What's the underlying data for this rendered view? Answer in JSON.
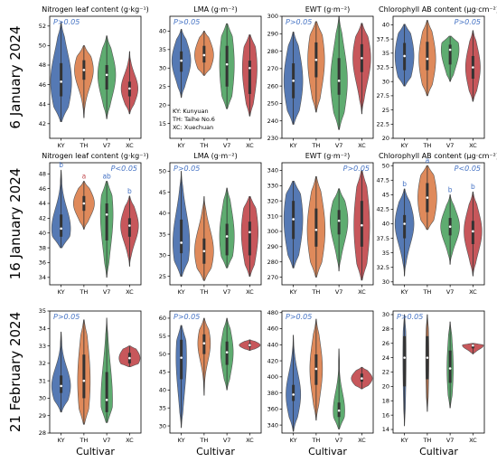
{
  "figure": {
    "row_labels": [
      "6 January 2024",
      "16 January 2024",
      "21 February 2024"
    ],
    "x_label": "Cultivar",
    "legend_lines": [
      "KY: Kunyuan",
      "TH: Taihe No.6",
      "XC: Xuechuan"
    ],
    "colors": {
      "KY": "#4c72b0",
      "TH": "#dd8452",
      "V7": "#55a868",
      "XC": "#c44e52"
    }
  },
  "chart_data": [
    {
      "type": "violin",
      "row": 0,
      "col": 0,
      "title": "Nitrogen leaf content (g·kg⁻¹)",
      "categories": [
        "KY",
        "TH",
        "V7",
        "XC"
      ],
      "ylim": [
        40.5,
        53
      ],
      "yticks": [
        42,
        44,
        46,
        48,
        50,
        52
      ],
      "annotation": "P>0.05",
      "series": [
        {
          "cat": "KY",
          "min": 42.2,
          "max": 52.4,
          "q1": 44.8,
          "median": 46.3,
          "q3": 48.2,
          "width": 1.0
        },
        {
          "cat": "TH",
          "min": 42.6,
          "max": 50.0,
          "q1": 46.5,
          "median": 47.5,
          "q3": 48.5,
          "width": 0.9
        },
        {
          "cat": "V7",
          "min": 42.5,
          "max": 51.0,
          "q1": 45.5,
          "median": 47.0,
          "q3": 48.0,
          "width": 0.85
        },
        {
          "cat": "XC",
          "min": 43.0,
          "max": 49.4,
          "q1": 44.8,
          "median": 45.6,
          "q3": 46.3,
          "width": 0.8
        }
      ]
    },
    {
      "type": "violin",
      "row": 0,
      "col": 1,
      "title": "LMA (g·m⁻²)",
      "categories": [
        "KY",
        "TH",
        "V7",
        "XC"
      ],
      "ylim": [
        11,
        44
      ],
      "yticks": [
        15,
        20,
        25,
        30,
        35,
        40
      ],
      "annotation": "P>0.05",
      "series": [
        {
          "cat": "KY",
          "min": 22.0,
          "max": 40.5,
          "q1": 29.0,
          "median": 32.0,
          "q3": 34.5,
          "width": 0.9
        },
        {
          "cat": "TH",
          "min": 28.0,
          "max": 40.0,
          "q1": 31.5,
          "median": 33.5,
          "q3": 36.0,
          "width": 0.9
        },
        {
          "cat": "V7",
          "min": 19.0,
          "max": 42.0,
          "q1": 25.0,
          "median": 31.0,
          "q3": 36.0,
          "width": 0.7
        },
        {
          "cat": "XC",
          "min": 17.0,
          "max": 39.0,
          "q1": 23.0,
          "median": 30.0,
          "q3": 32.0,
          "width": 0.7
        }
      ]
    },
    {
      "type": "violin",
      "row": 0,
      "col": 2,
      "title": "EWT (g·m⁻²)",
      "categories": [
        "KY",
        "TH",
        "V7",
        "XC"
      ],
      "ylim": [
        230,
        300
      ],
      "yticks": [
        230,
        240,
        250,
        260,
        270,
        280,
        290,
        300
      ],
      "annotation": "P>0.05",
      "series": [
        {
          "cat": "KY",
          "min": 238,
          "max": 291,
          "q1": 253,
          "median": 263,
          "q3": 273,
          "width": 0.9
        },
        {
          "cat": "TH",
          "min": 245,
          "max": 297,
          "q1": 265,
          "median": 275,
          "q3": 285,
          "width": 0.8
        },
        {
          "cat": "V7",
          "min": 235,
          "max": 300,
          "q1": 255,
          "median": 263,
          "q3": 276,
          "width": 0.8
        },
        {
          "cat": "XC",
          "min": 244,
          "max": 296,
          "q1": 268,
          "median": 276,
          "q3": 284,
          "width": 0.85
        }
      ]
    },
    {
      "type": "violin",
      "row": 0,
      "col": 3,
      "title": "Chlorophyll AB content (μg·cm⁻²)",
      "categories": [
        "KY",
        "TH",
        "V7",
        "XC"
      ],
      "ylim": [
        20,
        41.5
      ],
      "yticks": [
        20,
        22.5,
        25,
        27.5,
        30,
        32.5,
        35,
        37.5,
        40
      ],
      "annotation": "P>0.05",
      "series": [
        {
          "cat": "KY",
          "min": 29.2,
          "max": 40.1,
          "q1": 32.0,
          "median": 34.5,
          "q3": 36.8,
          "width": 0.9
        },
        {
          "cat": "TH",
          "min": 27.5,
          "max": 40.8,
          "q1": 32.0,
          "median": 34.0,
          "q3": 37.0,
          "width": 0.8
        },
        {
          "cat": "V7",
          "min": 30.0,
          "max": 38.0,
          "q1": 33.0,
          "median": 35.6,
          "q3": 36.5,
          "width": 0.85
        },
        {
          "cat": "XC",
          "min": 26.5,
          "max": 39.0,
          "q1": 30.5,
          "median": 32.5,
          "q3": 34.5,
          "width": 0.7
        }
      ]
    },
    {
      "type": "violin",
      "row": 1,
      "col": 0,
      "title": "Nitrogen leaf content (g·kg⁻¹)",
      "categories": [
        "KY",
        "TH",
        "V7",
        "XC"
      ],
      "ylim": [
        33,
        49.5
      ],
      "yticks": [
        34,
        36,
        38,
        40,
        42,
        44,
        46,
        48
      ],
      "annotation": "P<0.05",
      "letters": [
        "b",
        "a",
        "ab",
        "b"
      ],
      "series": [
        {
          "cat": "KY",
          "min": 38.0,
          "max": 48.5,
          "q1": 39.5,
          "median": 40.6,
          "q3": 42.5,
          "width": 0.9
        },
        {
          "cat": "TH",
          "min": 40.5,
          "max": 47.0,
          "q1": 43.0,
          "median": 44.0,
          "q3": 45.0,
          "width": 1.0
        },
        {
          "cat": "V7",
          "min": 34.0,
          "max": 47.0,
          "q1": 39.0,
          "median": 42.5,
          "q3": 44.0,
          "width": 0.6
        },
        {
          "cat": "XC",
          "min": 35.5,
          "max": 45.0,
          "q1": 39.5,
          "median": 41.0,
          "q3": 42.0,
          "width": 0.85
        }
      ]
    },
    {
      "type": "violin",
      "row": 1,
      "col": 1,
      "title": "LMA (g·m⁻²)",
      "categories": [
        "KY",
        "TH",
        "V7",
        "XC"
      ],
      "ylim": [
        23,
        52
      ],
      "yticks": [
        25,
        30,
        35,
        40,
        45,
        50
      ],
      "annotation": "P>0.05",
      "series": [
        {
          "cat": "KY",
          "min": 25.0,
          "max": 50.0,
          "q1": 30.5,
          "median": 33.0,
          "q3": 38.5,
          "width": 0.8
        },
        {
          "cat": "TH",
          "min": 24.0,
          "max": 44.0,
          "q1": 28.0,
          "median": 31.0,
          "q3": 34.0,
          "width": 0.9
        },
        {
          "cat": "V7",
          "min": 27.0,
          "max": 46.0,
          "q1": 30.0,
          "median": 34.5,
          "q3": 37.5,
          "width": 0.7
        },
        {
          "cat": "XC",
          "min": 25.0,
          "max": 44.0,
          "q1": 30.0,
          "median": 35.5,
          "q3": 38.0,
          "width": 0.8
        }
      ]
    },
    {
      "type": "violin",
      "row": 1,
      "col": 2,
      "title": "EWT (g·m⁻²)",
      "categories": [
        "KY",
        "TH",
        "V7",
        "XC"
      ],
      "ylim": [
        265,
        345
      ],
      "yticks": [
        270,
        280,
        290,
        300,
        310,
        320,
        330,
        340
      ],
      "annotation": "P>0.05",
      "series": [
        {
          "cat": "KY",
          "min": 276,
          "max": 333,
          "q1": 295,
          "median": 308,
          "q3": 320,
          "width": 0.9
        },
        {
          "cat": "TH",
          "min": 270,
          "max": 336,
          "q1": 290,
          "median": 301,
          "q3": 315,
          "width": 0.85
        },
        {
          "cat": "V7",
          "min": 274,
          "max": 328,
          "q1": 298,
          "median": 307,
          "q3": 314,
          "width": 0.85
        },
        {
          "cat": "XC",
          "min": 268,
          "max": 340,
          "q1": 290,
          "median": 304,
          "q3": 320,
          "width": 0.75
        }
      ]
    },
    {
      "type": "violin",
      "row": 1,
      "col": 3,
      "title": "Chlorophyll AB content (μg·cm⁻²)",
      "categories": [
        "KY",
        "TH",
        "V7",
        "XC"
      ],
      "ylim": [
        29.5,
        50.5
      ],
      "yticks": [
        30,
        32.5,
        35,
        37.5,
        40,
        42.5,
        45,
        47.5,
        50
      ],
      "annotation": "P<0.05",
      "letters": [
        "b",
        "a",
        "b",
        "b"
      ],
      "series": [
        {
          "cat": "KY",
          "min": 31.0,
          "max": 46.0,
          "q1": 37.5,
          "median": 40.0,
          "q3": 41.5,
          "width": 0.9
        },
        {
          "cat": "TH",
          "min": 39.0,
          "max": 50.0,
          "q1": 42.0,
          "median": 44.5,
          "q3": 47.0,
          "width": 0.9
        },
        {
          "cat": "V7",
          "min": 33.0,
          "max": 45.0,
          "q1": 38.0,
          "median": 39.5,
          "q3": 41.0,
          "width": 0.9
        },
        {
          "cat": "XC",
          "min": 31.0,
          "max": 45.5,
          "q1": 36.5,
          "median": 38.7,
          "q3": 40.5,
          "width": 0.85
        }
      ]
    },
    {
      "type": "violin",
      "row": 2,
      "col": 0,
      "title": "",
      "categories": [
        "KY",
        "TH",
        "V7",
        "XC"
      ],
      "ylim": [
        28,
        35
      ],
      "yticks": [
        28,
        29,
        30,
        31,
        32,
        33,
        34,
        35
      ],
      "annotation": "P>0.05",
      "series": [
        {
          "cat": "KY",
          "min": 29.2,
          "max": 33.8,
          "q1": 30.3,
          "median": 30.7,
          "q3": 31.3,
          "width": 0.9
        },
        {
          "cat": "TH",
          "min": 28.5,
          "max": 34.5,
          "q1": 30.0,
          "median": 31.0,
          "q3": 32.5,
          "width": 0.6
        },
        {
          "cat": "V7",
          "min": 28.6,
          "max": 34.6,
          "q1": 29.2,
          "median": 29.9,
          "q3": 31.5,
          "width": 0.55
        },
        {
          "cat": "XC",
          "min": 31.8,
          "max": 33.0,
          "q1": 32.0,
          "median": 32.3,
          "q3": 32.6,
          "width": 1.0
        }
      ]
    },
    {
      "type": "violin",
      "row": 2,
      "col": 1,
      "title": "",
      "categories": [
        "KY",
        "TH",
        "V7",
        "XC"
      ],
      "ylim": [
        28,
        62
      ],
      "yticks": [
        30,
        35,
        40,
        45,
        50,
        55,
        60
      ],
      "annotation": "P>0.05",
      "series": [
        {
          "cat": "KY",
          "min": 29.5,
          "max": 58.0,
          "q1": 43.0,
          "median": 49.0,
          "q3": 54.0,
          "width": 0.5
        },
        {
          "cat": "TH",
          "min": 38.5,
          "max": 60.0,
          "q1": 50.0,
          "median": 53.0,
          "q3": 55.5,
          "width": 0.6
        },
        {
          "cat": "V7",
          "min": 40.0,
          "max": 60.0,
          "q1": 47.0,
          "median": 50.5,
          "q3": 53.5,
          "width": 0.6
        },
        {
          "cat": "XC",
          "min": 51.0,
          "max": 54.0,
          "q1": 52.0,
          "median": 52.5,
          "q3": 53.0,
          "width": 1.0
        }
      ]
    },
    {
      "type": "violin",
      "row": 2,
      "col": 2,
      "title": "",
      "categories": [
        "KY",
        "TH",
        "V7",
        "XC"
      ],
      "ylim": [
        330,
        482
      ],
      "yticks": [
        340,
        360,
        380,
        400,
        420,
        440,
        460,
        480
      ],
      "annotation": "P>0.05",
      "series": [
        {
          "cat": "KY",
          "min": 332,
          "max": 452,
          "q1": 370,
          "median": 378,
          "q3": 390,
          "width": 0.7
        },
        {
          "cat": "TH",
          "min": 346,
          "max": 472,
          "q1": 390,
          "median": 410,
          "q3": 428,
          "width": 0.6
        },
        {
          "cat": "V7",
          "min": 335,
          "max": 435,
          "q1": 350,
          "median": 358,
          "q3": 368,
          "width": 0.55
        },
        {
          "cat": "XC",
          "min": 385,
          "max": 412,
          "q1": 394,
          "median": 398,
          "q3": 404,
          "width": 1.0
        }
      ]
    },
    {
      "type": "violin",
      "row": 2,
      "col": 3,
      "title": "",
      "categories": [
        "KY",
        "TH",
        "V7",
        "XC"
      ],
      "ylim": [
        13.5,
        30.5
      ],
      "yticks": [
        14,
        16,
        18,
        20,
        22,
        24,
        26,
        28,
        30
      ],
      "annotation": "P>0.05",
      "series": [
        {
          "cat": "KY",
          "min": 14.5,
          "max": 30.0,
          "q1": 20.0,
          "median": 24.0,
          "q3": 27.0,
          "width": 0.15
        },
        {
          "cat": "TH",
          "min": 16.5,
          "max": 30.0,
          "q1": 21.0,
          "median": 24.0,
          "q3": 27.0,
          "width": 0.15
        },
        {
          "cat": "V7",
          "min": 17.0,
          "max": 29.0,
          "q1": 20.5,
          "median": 22.5,
          "q3": 25.0,
          "width": 0.3
        },
        {
          "cat": "XC",
          "min": 24.5,
          "max": 26.0,
          "q1": 25.3,
          "median": 25.7,
          "q3": 25.9,
          "width": 1.0
        }
      ]
    }
  ]
}
